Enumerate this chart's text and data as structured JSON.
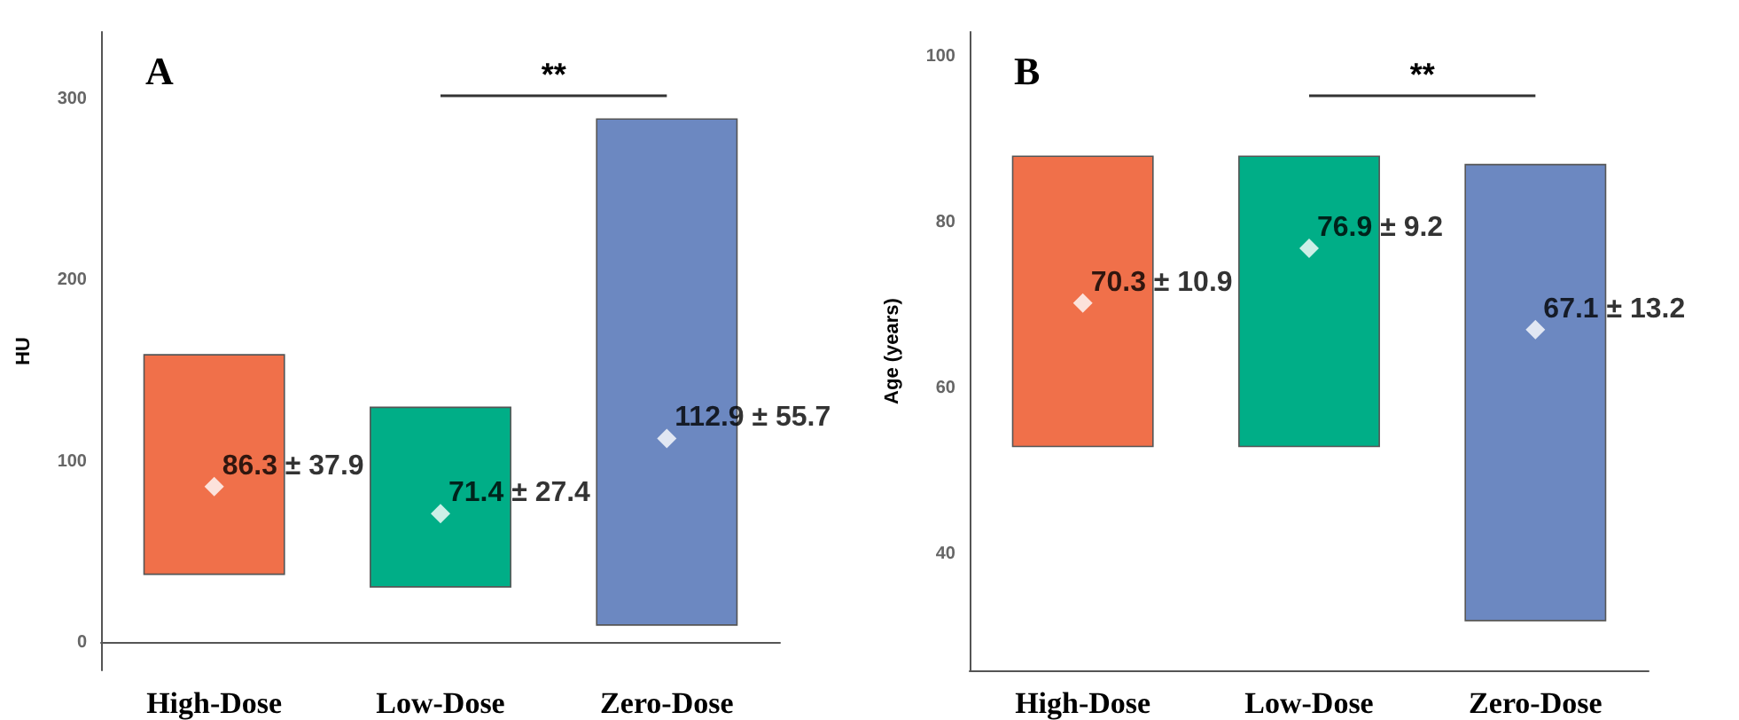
{
  "chart_data": [
    {
      "type": "bar",
      "title": "A",
      "ylabel": "HU",
      "categories": [
        "High-Dose",
        "Low-Dose",
        "Zero-Dose"
      ],
      "ylim": [
        -15,
        337
      ],
      "yticks": [
        0,
        100,
        200,
        300
      ],
      "grid": false,
      "annotations": [
        "**"
      ],
      "series": [
        {
          "type": "bar",
          "colors": [
            "#f0704a",
            "#00ae87",
            "#6c88c1"
          ],
          "base": [
            38,
            31,
            10
          ],
          "values": [
            121,
            99,
            279
          ]
        },
        {
          "type": "scatter",
          "color": "#ffffff",
          "marker": "diamond",
          "values": [
            86.3,
            71.4,
            112.9
          ],
          "value_labels": [
            "86.3 ± 37.9",
            "71.4 ± 27.4",
            "112.9 ± 55.7"
          ]
        }
      ]
    },
    {
      "type": "bar",
      "title": "B",
      "ylabel": "Age (years)",
      "categories": [
        "High-Dose",
        "Low-Dose",
        "Zero-Dose"
      ],
      "ylim": [
        26,
        103
      ],
      "yticks": [
        40,
        60,
        80,
        100
      ],
      "grid": false,
      "annotations": [
        "**"
      ],
      "series": [
        {
          "type": "bar",
          "colors": [
            "#f0704a",
            "#00ae87",
            "#6c88c1"
          ],
          "base": [
            53,
            53,
            32
          ],
          "values": [
            35,
            35,
            55
          ]
        },
        {
          "type": "scatter",
          "color": "#ffffff",
          "marker": "diamond",
          "values": [
            70.3,
            76.9,
            67.1
          ],
          "value_labels": [
            "70.3 ± 10.9",
            "76.9 ± 9.2",
            "67.1 ± 13.2"
          ]
        }
      ]
    }
  ]
}
